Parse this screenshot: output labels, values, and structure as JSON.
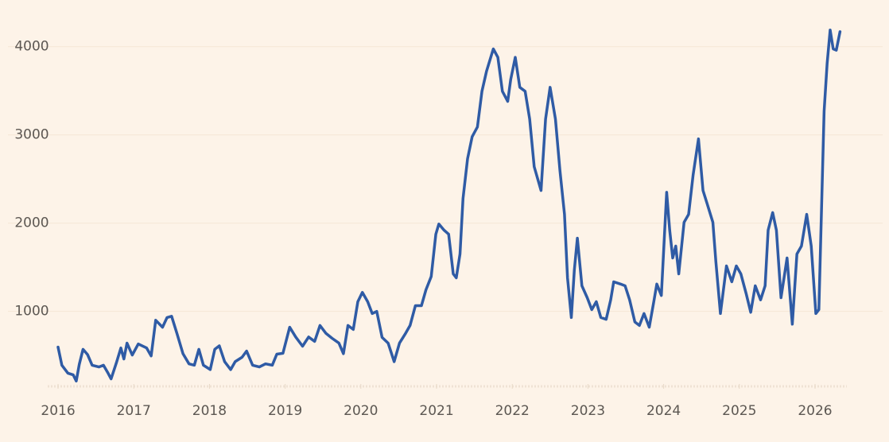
{
  "chart_data": {
    "type": "line",
    "x": [
      2016.0,
      2016.05,
      2016.13,
      2016.2,
      2016.24,
      2016.28,
      2016.33,
      2016.39,
      2016.45,
      2016.54,
      2016.6,
      2016.66,
      2016.7,
      2016.77,
      2016.83,
      2016.87,
      2016.91,
      2016.98,
      2017.06,
      2017.17,
      2017.23,
      2017.29,
      2017.38,
      2017.44,
      2017.5,
      2017.57,
      2017.65,
      2017.73,
      2017.8,
      2017.86,
      2017.92,
      2018.01,
      2018.07,
      2018.13,
      2018.2,
      2018.28,
      2018.34,
      2018.43,
      2018.49,
      2018.57,
      2018.66,
      2018.74,
      2018.83,
      2018.89,
      2018.97,
      2019.06,
      2019.14,
      2019.23,
      2019.31,
      2019.39,
      2019.46,
      2019.54,
      2019.62,
      2019.71,
      2019.77,
      2019.83,
      2019.9,
      2019.96,
      2020.02,
      2020.09,
      2020.15,
      2020.21,
      2020.28,
      2020.36,
      2020.44,
      2020.51,
      2020.59,
      2020.65,
      2020.72,
      2020.8,
      2020.86,
      2020.93,
      2020.99,
      2021.03,
      2021.1,
      2021.16,
      2021.22,
      2021.26,
      2021.31,
      2021.35,
      2021.41,
      2021.47,
      2021.54,
      2021.6,
      2021.66,
      2021.75,
      2021.81,
      2021.87,
      2021.94,
      2021.98,
      2022.04,
      2022.1,
      2022.17,
      2022.23,
      2022.29,
      2022.38,
      2022.44,
      2022.5,
      2022.57,
      2022.63,
      2022.69,
      2022.73,
      2022.78,
      2022.82,
      2022.86,
      2022.92,
      2022.99,
      2023.05,
      2023.11,
      2023.17,
      2023.24,
      2023.3,
      2023.34,
      2023.43,
      2023.49,
      2023.55,
      2023.62,
      2023.68,
      2023.74,
      2023.81,
      2023.87,
      2023.91,
      2023.97,
      2024.04,
      2024.08,
      2024.12,
      2024.16,
      2024.2,
      2024.27,
      2024.33,
      2024.39,
      2024.46,
      2024.52,
      2024.58,
      2024.65,
      2024.69,
      2024.75,
      2024.83,
      2024.9,
      2024.96,
      2025.02,
      2025.09,
      2025.15,
      2025.21,
      2025.28,
      2025.34,
      2025.38,
      2025.44,
      2025.49,
      2025.55,
      2025.63,
      2025.7,
      2025.76,
      2025.82,
      2025.89,
      2025.95,
      2026.01,
      2026.05,
      2026.12,
      2026.16,
      2026.2,
      2026.24,
      2026.28,
      2026.33
    ],
    "series": [
      {
        "color": "#2f5ba5",
        "values": [
          595,
          390,
          300,
          280,
          210,
          400,
          570,
          510,
          390,
          370,
          390,
          300,
          235,
          415,
          585,
          460,
          640,
          505,
          630,
          585,
          495,
          900,
          820,
          930,
          945,
          750,
          520,
          405,
          390,
          570,
          390,
          340,
          570,
          610,
          430,
          340,
          430,
          480,
          550,
          390,
          370,
          405,
          390,
          515,
          525,
          820,
          710,
          605,
          710,
          660,
          840,
          750,
          695,
          640,
          520,
          840,
          795,
          1110,
          1215,
          1110,
          975,
          1000,
          705,
          640,
          430,
          640,
          750,
          840,
          1065,
          1065,
          1245,
          1395,
          1875,
          1990,
          1920,
          1875,
          1425,
          1380,
          1650,
          2280,
          2730,
          2980,
          3090,
          3495,
          3720,
          3975,
          3880,
          3495,
          3380,
          3630,
          3880,
          3540,
          3495,
          3180,
          2640,
          2370,
          3180,
          3540,
          3180,
          2595,
          2100,
          1380,
          930,
          1470,
          1830,
          1290,
          1155,
          1020,
          1110,
          930,
          910,
          1130,
          1335,
          1310,
          1290,
          1130,
          880,
          840,
          975,
          820,
          1110,
          1310,
          1180,
          2350,
          1920,
          1605,
          1740,
          1425,
          2010,
          2100,
          2550,
          2955,
          2370,
          2205,
          2010,
          1560,
          975,
          1515,
          1335,
          1515,
          1425,
          1200,
          990,
          1290,
          1130,
          1290,
          1920,
          2120,
          1920,
          1155,
          1605,
          855,
          1650,
          1740,
          2100,
          1740,
          975,
          1020,
          3270,
          3810,
          4190,
          3975,
          3960,
          4170
        ]
      }
    ],
    "xlim": [
      2015.9,
      2026.5
    ],
    "xticks": [
      2016,
      2017,
      2018,
      2019,
      2020,
      2021,
      2022,
      2023,
      2024,
      2025,
      2026
    ],
    "ylim": [
      150,
      4250
    ],
    "yticks": [
      1000,
      2000,
      3000,
      4000
    ],
    "grid": true
  }
}
